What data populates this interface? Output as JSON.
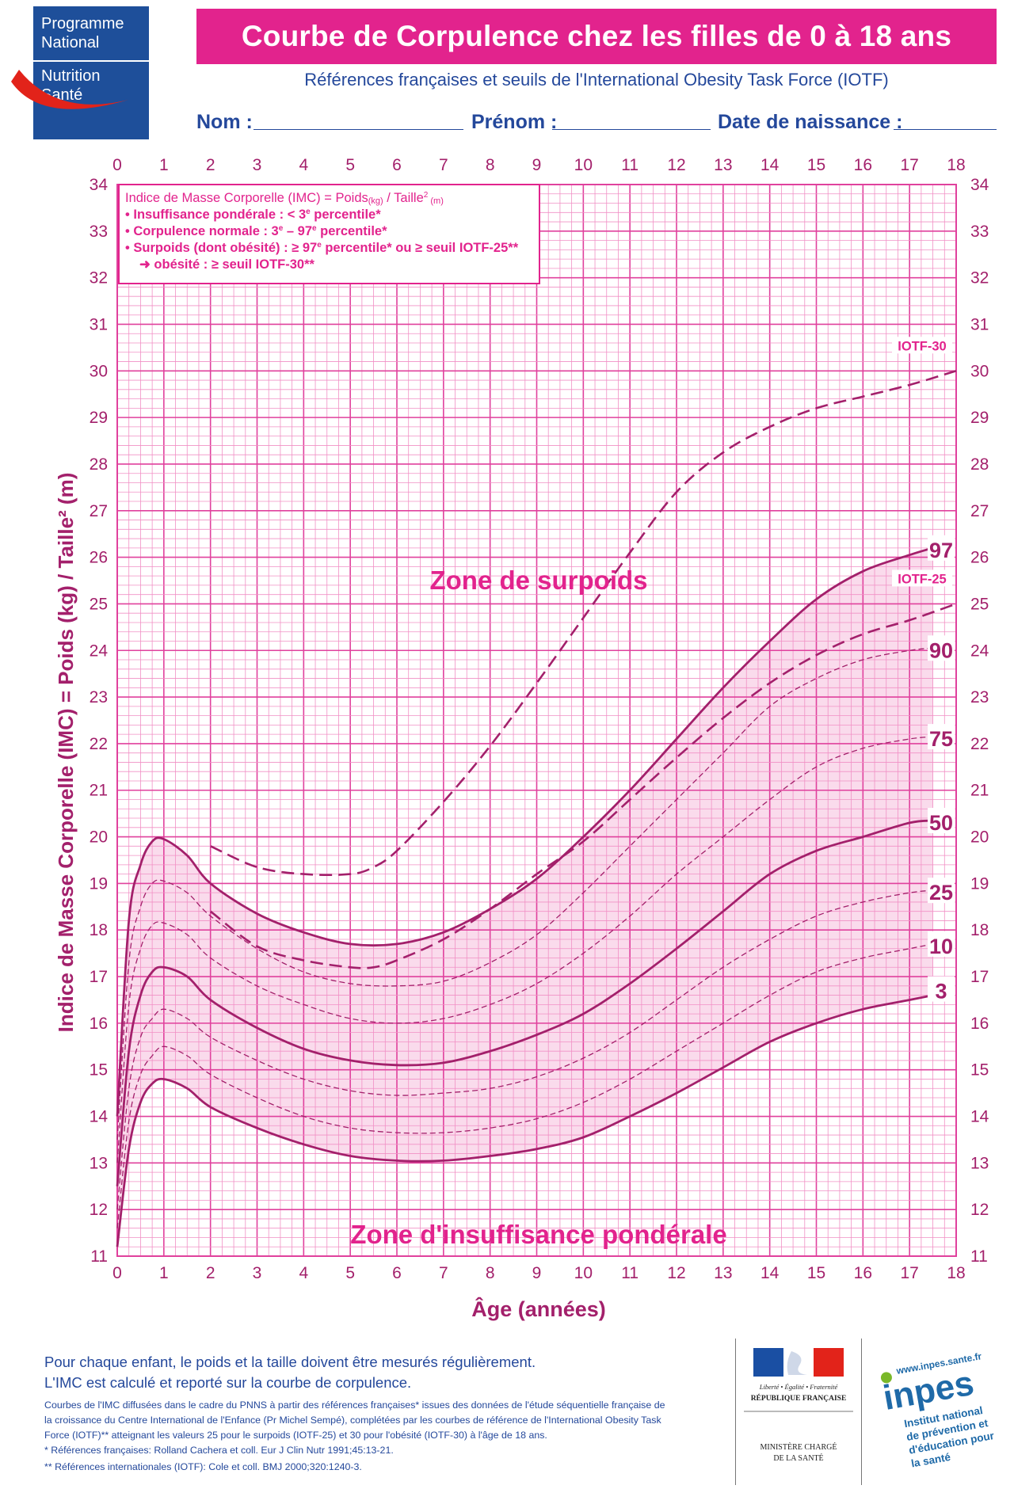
{
  "logos": {
    "pnns": {
      "lines": [
        "Programme",
        "National",
        "Nutrition",
        "Santé"
      ],
      "color_top": "#2b5aa8",
      "color_bottom": "#1e4f9a"
    },
    "republique": {
      "motto": "Liberté • Égalité • Fraternité",
      "name": "RÉPUBLIQUE FRANÇAISE",
      "ministry_line1": "MINISTÈRE CHARGÉ",
      "ministry_line2": "DE LA SANTÉ"
    },
    "inpes": {
      "url": "www.inpes.sante.fr",
      "name": "inpes",
      "line1": "Institut national",
      "line2": "de prévention et",
      "line3": "d'éducation pour",
      "line4": "la santé"
    }
  },
  "header": {
    "title": "Courbe de Corpulence chez les filles de 0 à 18 ans",
    "subtitle": "Références françaises et seuils de l'International Obesity Task Force (IOTF)",
    "field_nom": "Nom :",
    "field_prenom": "Prénom :",
    "field_naissance": "Date de naissance :"
  },
  "colors": {
    "accent": "#e2238d",
    "grid_major": "#e0419d",
    "grid_minor": "#f190c5",
    "curve": "#a3206b",
    "band_fill": "#fadbec",
    "text_blue": "#24489b"
  },
  "legend_box": {
    "line1_a": "Indice de Masse Corporelle (IMC) = Poids",
    "line1_sub1": "(kg)",
    "line1_b": " / Taille",
    "line1_sup": "2",
    "line1_sub2": " (m)",
    "line2_a": "• Insuffisance pondérale : < 3",
    "line2_sup": "e",
    "line2_b": " percentile*",
    "line3_a": "• Corpulence normale : 3",
    "line3_sup1": "e",
    "line3_b": " – 97",
    "line3_sup2": "e",
    "line3_c": " percentile*",
    "line4_a": "• Surpoids (dont obésité) : ≥ 97",
    "line4_sup": "e",
    "line4_b": " percentile* ou ≥ seuil IOTF-25**",
    "line5": "➜ obésité : ≥ seuil IOTF-30**"
  },
  "chart_data": {
    "type": "line",
    "xlabel": "Âge (années)",
    "ylabel": "Indice de Masse Corporelle (IMC) = Poids (kg) / Taille² (m)",
    "xlim": [
      0,
      18
    ],
    "ylim": [
      11,
      34
    ],
    "x_ticks": [
      "0",
      "1",
      "2",
      "3",
      "4",
      "5",
      "6",
      "7",
      "8",
      "9",
      "10",
      "11",
      "12",
      "13",
      "14",
      "15",
      "16",
      "17",
      "18"
    ],
    "y_ticks": [
      "11",
      "12",
      "13",
      "14",
      "15",
      "16",
      "17",
      "18",
      "19",
      "20",
      "21",
      "22",
      "23",
      "24",
      "25",
      "26",
      "27",
      "28",
      "29",
      "30",
      "31",
      "32",
      "33",
      "34"
    ],
    "grid": true,
    "zone_labels": {
      "over": "Zone de surpoids",
      "under": "Zone d'insuffisance pondérale"
    },
    "series": [
      {
        "name": "3",
        "style": "solid",
        "x": [
          0,
          0.25,
          0.5,
          0.75,
          1,
          1.5,
          2,
          3,
          4,
          5,
          6,
          7,
          8,
          9,
          10,
          11,
          12,
          13,
          14,
          15,
          16,
          17,
          17.5
        ],
        "y": [
          11.2,
          13.3,
          14.3,
          14.7,
          14.8,
          14.6,
          14.2,
          13.75,
          13.4,
          13.15,
          13.05,
          13.05,
          13.15,
          13.3,
          13.55,
          14.0,
          14.5,
          15.05,
          15.6,
          16.0,
          16.3,
          16.5,
          16.6
        ]
      },
      {
        "name": "10",
        "style": "dashed-thin",
        "x": [
          0,
          0.25,
          0.5,
          0.75,
          1,
          1.5,
          2,
          3,
          4,
          5,
          6,
          7,
          8,
          9,
          10,
          11,
          12,
          13,
          14,
          15,
          16,
          17,
          17.5
        ],
        "y": [
          11.6,
          13.9,
          14.9,
          15.3,
          15.5,
          15.3,
          14.9,
          14.4,
          14.0,
          13.75,
          13.65,
          13.65,
          13.75,
          13.95,
          14.3,
          14.8,
          15.4,
          16.0,
          16.6,
          17.1,
          17.4,
          17.6,
          17.7
        ]
      },
      {
        "name": "25",
        "style": "dashed-thin",
        "x": [
          0,
          0.25,
          0.5,
          0.75,
          1,
          1.5,
          2,
          3,
          4,
          5,
          6,
          7,
          8,
          9,
          10,
          11,
          12,
          13,
          14,
          15,
          16,
          17,
          17.5
        ],
        "y": [
          12.0,
          14.6,
          15.7,
          16.1,
          16.3,
          16.1,
          15.7,
          15.2,
          14.8,
          14.55,
          14.45,
          14.5,
          14.6,
          14.85,
          15.25,
          15.8,
          16.5,
          17.2,
          17.8,
          18.3,
          18.6,
          18.8,
          18.85
        ]
      },
      {
        "name": "50",
        "style": "solid",
        "x": [
          0,
          0.25,
          0.5,
          0.75,
          1,
          1.5,
          2,
          3,
          4,
          5,
          6,
          7,
          8,
          9,
          10,
          11,
          12,
          13,
          14,
          15,
          16,
          17,
          17.5
        ],
        "y": [
          12.5,
          15.4,
          16.6,
          17.1,
          17.2,
          17.0,
          16.5,
          15.9,
          15.45,
          15.2,
          15.1,
          15.15,
          15.4,
          15.75,
          16.2,
          16.85,
          17.6,
          18.4,
          19.2,
          19.7,
          20.0,
          20.3,
          20.35
        ]
      },
      {
        "name": "75",
        "style": "dashed-thin",
        "x": [
          0,
          0.25,
          0.5,
          0.75,
          1,
          1.5,
          2,
          3,
          4,
          5,
          6,
          7,
          8,
          9,
          10,
          11,
          12,
          13,
          14,
          15,
          16,
          17,
          17.5
        ],
        "y": [
          13.0,
          16.4,
          17.6,
          18.1,
          18.15,
          17.9,
          17.4,
          16.8,
          16.4,
          16.1,
          16.0,
          16.1,
          16.4,
          16.85,
          17.5,
          18.3,
          19.2,
          20.0,
          20.8,
          21.5,
          21.9,
          22.1,
          22.15
        ]
      },
      {
        "name": "90",
        "style": "dashed-thin",
        "x": [
          0,
          0.25,
          0.5,
          0.75,
          1,
          1.5,
          2,
          3,
          4,
          5,
          6,
          7,
          8,
          9,
          10,
          11,
          12,
          13,
          14,
          15,
          16,
          17,
          17.5
        ],
        "y": [
          13.5,
          17.3,
          18.5,
          19.0,
          19.05,
          18.8,
          18.3,
          17.6,
          17.1,
          16.85,
          16.8,
          16.9,
          17.3,
          17.9,
          18.8,
          19.8,
          20.8,
          21.8,
          22.8,
          23.4,
          23.8,
          24.0,
          24.05
        ]
      },
      {
        "name": "97",
        "style": "solid",
        "x": [
          0,
          0.25,
          0.5,
          0.75,
          1,
          1.5,
          2,
          3,
          4,
          5,
          6,
          7,
          8,
          9,
          10,
          11,
          12,
          13,
          14,
          15,
          16,
          17,
          17.5
        ],
        "y": [
          14.0,
          18.2,
          19.4,
          19.9,
          19.95,
          19.6,
          19.0,
          18.35,
          17.95,
          17.7,
          17.7,
          17.95,
          18.45,
          19.1,
          20.0,
          21.0,
          22.1,
          23.2,
          24.2,
          25.1,
          25.7,
          26.05,
          26.2
        ]
      },
      {
        "name": "IOTF-25",
        "style": "dashed",
        "x": [
          2,
          3,
          4,
          5,
          5.5,
          6,
          7,
          8,
          9,
          10,
          11,
          12,
          13,
          14,
          15,
          16,
          17,
          18
        ],
        "y": [
          18.4,
          17.65,
          17.35,
          17.2,
          17.2,
          17.35,
          17.8,
          18.45,
          19.2,
          19.9,
          20.8,
          21.7,
          22.55,
          23.3,
          23.9,
          24.35,
          24.65,
          25.0
        ]
      },
      {
        "name": "IOTF-30",
        "style": "dashed",
        "x": [
          2,
          3,
          4,
          5,
          5.5,
          6,
          7,
          8,
          9,
          10,
          11,
          12,
          13,
          14,
          15,
          16,
          17,
          18
        ],
        "y": [
          19.8,
          19.35,
          19.2,
          19.2,
          19.35,
          19.7,
          20.75,
          21.95,
          23.3,
          24.7,
          26.1,
          27.4,
          28.25,
          28.8,
          29.2,
          29.45,
          29.7,
          30.0
        ]
      }
    ]
  },
  "footer": {
    "line1": "Pour chaque enfant, le poids et la taille doivent être mesurés régulièrement.",
    "line2": "L'IMC est calculé et reporté sur la courbe de corpulence.",
    "sources_line1": "Courbes de l'IMC diffusées dans le cadre du PNNS à partir des références françaises* issues des données de l'étude séquentielle française de",
    "sources_line2": "la croissance du Centre International de l'Enfance (Pr Michel Sempé), complétées par les courbes de référence de l'International Obesity Task",
    "sources_line3": "Force (IOTF)** atteignant les valeurs 25 pour le surpoids (IOTF-25) et 30 pour l'obésité (IOTF-30) à l'âge de 18 ans.",
    "ref1": "* Références françaises: Rolland Cachera et coll. Eur J Clin Nutr 1991;45:13-21.",
    "ref2": "** Références internationales (IOTF): Cole et coll. BMJ 2000;320:1240-3."
  }
}
